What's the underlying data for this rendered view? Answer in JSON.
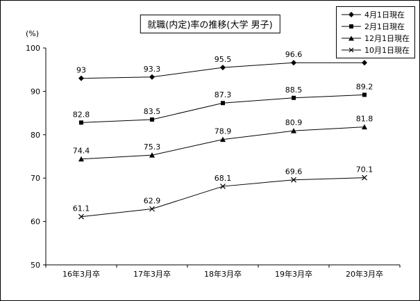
{
  "accent_color": "#000000",
  "background_color": "#ffffff",
  "chart_data": {
    "type": "line",
    "title": "就職(内定)率の推移(大学 男子)",
    "ylabel": "(%)",
    "categories": [
      "16年3月卒",
      "17年3月卒",
      "18年3月卒",
      "19年3月卒",
      "20年3月卒"
    ],
    "series": [
      {
        "name": "4月1日現在",
        "marker": "diamond-marker-icon",
        "marker_shape": "diamond",
        "values": [
          93,
          93.3,
          95.5,
          96.6,
          96.6
        ]
      },
      {
        "name": "2月1日現在",
        "marker": "square-marker-icon",
        "marker_shape": "square",
        "values": [
          82.8,
          83.5,
          87.3,
          88.5,
          89.2
        ]
      },
      {
        "name": "12月1日現在",
        "marker": "triangle-marker-icon",
        "marker_shape": "triangle",
        "values": [
          74.4,
          75.3,
          78.9,
          80.9,
          81.8
        ]
      },
      {
        "name": "10月1日現在",
        "marker": "x-marker-icon",
        "marker_shape": "x",
        "values": [
          61.1,
          62.9,
          68.1,
          69.6,
          70.1
        ]
      }
    ],
    "ylim": [
      50,
      100
    ],
    "yticks": [
      100,
      90,
      80,
      70,
      60,
      50
    ],
    "grid": false,
    "legend_position": "top-right",
    "line_color": "#000000"
  }
}
